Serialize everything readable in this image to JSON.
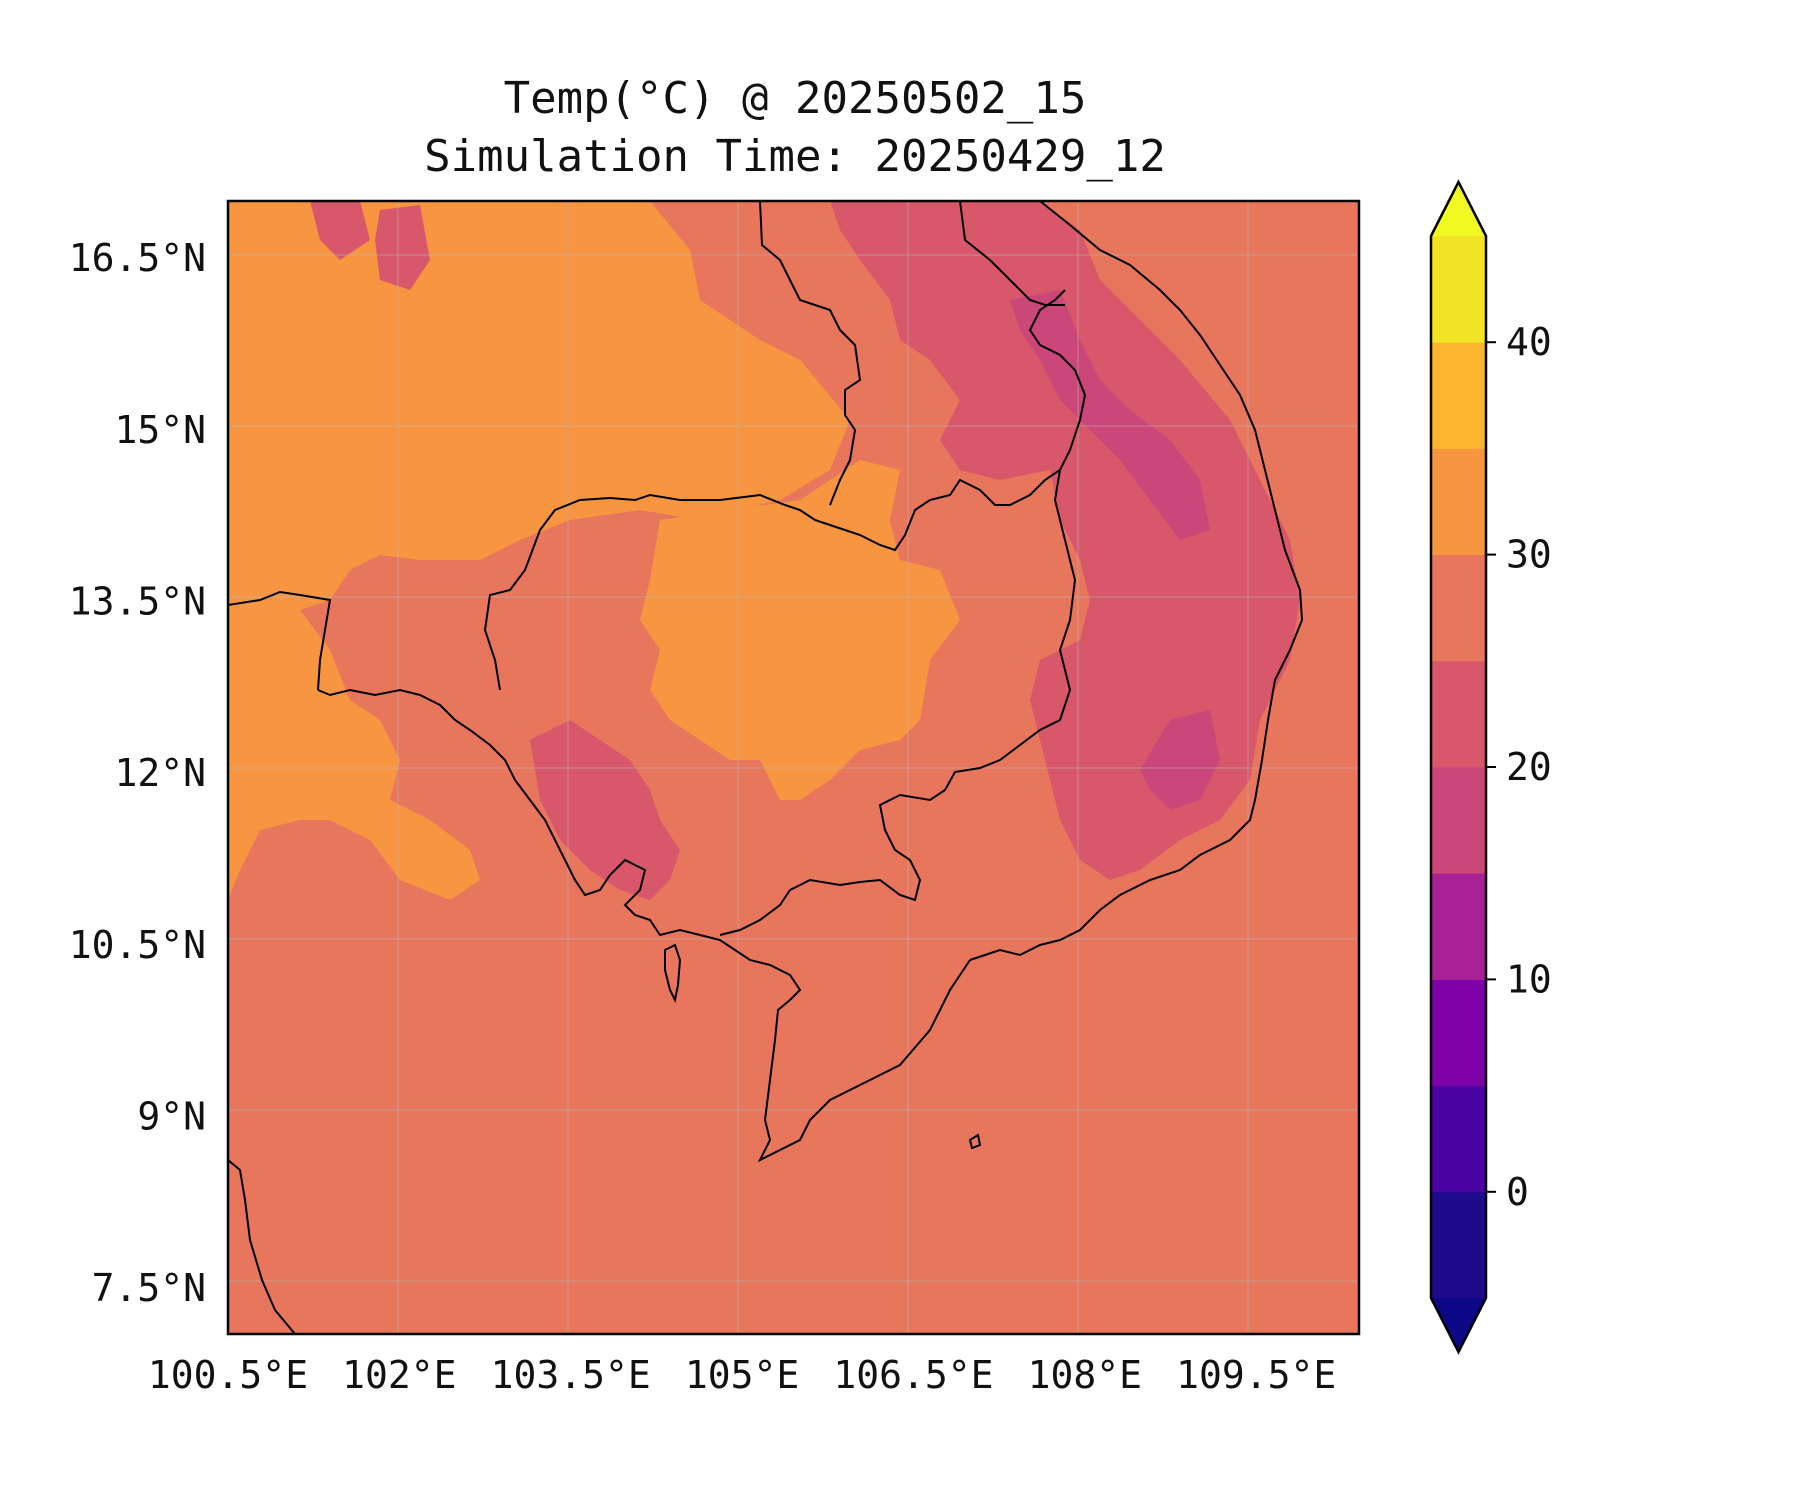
{
  "title": {
    "line1": "Temp(°C) @ 20250502_15",
    "line2": "Simulation Time: 20250429_12"
  },
  "axes": {
    "x_ticks": [
      "100.5°E",
      "102°E",
      "103.5°E",
      "105°E",
      "106.5°E",
      "108°E",
      "109.5°E"
    ],
    "y_ticks": [
      "16.5°N",
      "15°N",
      "13.5°N",
      "12°N",
      "10.5°N",
      "9°N",
      "7.5°N"
    ],
    "lon_range": [
      100.5,
      110.4
    ],
    "lat_range": [
      7.1,
      17.0
    ],
    "x_values": [
      100.5,
      102.0,
      103.5,
      105.0,
      106.5,
      108.0,
      109.5
    ],
    "y_values": [
      16.5,
      15.0,
      13.5,
      12.0,
      10.5,
      9.0,
      7.5
    ]
  },
  "colorbar": {
    "labels": [
      "40",
      "30",
      "20",
      "10",
      "0"
    ],
    "label_values": [
      40,
      30,
      20,
      10,
      0
    ],
    "levels": [
      -5,
      0,
      5,
      10,
      15,
      20,
      25,
      30,
      35,
      40,
      45
    ],
    "colors": [
      "#1f0a8c",
      "#4b03a1",
      "#7d03a8",
      "#a82296",
      "#cb4679",
      "#d8576b",
      "#e8765c",
      "#f89540",
      "#fdb42f",
      "#f0e424"
    ],
    "under_color": "#0d0887",
    "over_color": "#f0f921",
    "extend": "both",
    "colormap": "plasma"
  },
  "colors": {
    "background_field": "#e8765c",
    "warm_field": "#f89540",
    "cool_field": "#d8576b",
    "coolest_field": "#cb4679",
    "coastline": "#000000"
  }
}
